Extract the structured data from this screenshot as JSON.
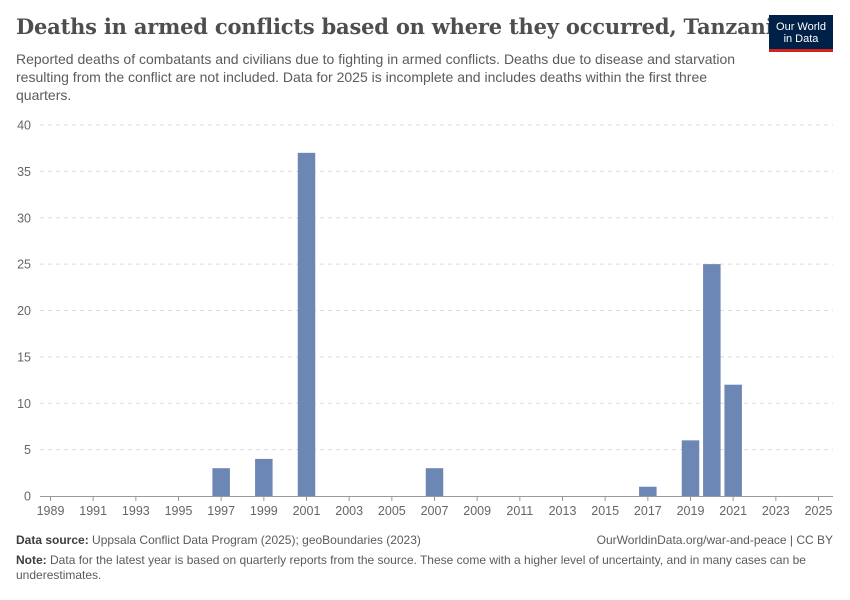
{
  "header": {
    "title": "Deaths in armed conflicts based on where they occurred, Tanzania",
    "subtitle": "Reported deaths of combatants and civilians due to fighting in armed conflicts. Deaths due to disease and starvation resulting from the conflict are not included. Data for 2025 is incomplete and includes deaths within the first three quarters."
  },
  "logo": {
    "line1": "Our World",
    "line2": "in Data"
  },
  "footer": {
    "source_label": "Data source:",
    "source_text": "Uppsala Conflict Data Program (2025); geoBoundaries (2023)",
    "url": "OurWorldinData.org/war-and-peace | CC BY",
    "note_label": "Note:",
    "note_text": "Data for the latest year is based on quarterly reports from the source. These come with a higher level of uncertainty, and in many cases can be underestimates."
  },
  "chart_data": {
    "type": "bar",
    "title": "Deaths in armed conflicts based on where they occurred, Tanzania",
    "xlabel": "",
    "ylabel": "",
    "ylim": [
      0,
      40
    ],
    "yticks": [
      0,
      5,
      10,
      15,
      20,
      25,
      30,
      35,
      40
    ],
    "xticks": [
      1989,
      1991,
      1993,
      1995,
      1997,
      1999,
      2001,
      2003,
      2005,
      2007,
      2009,
      2011,
      2013,
      2015,
      2017,
      2019,
      2021,
      2023,
      2025
    ],
    "xlim": [
      1989,
      2025
    ],
    "grid": true,
    "bar_color": "#6d87b4",
    "categories": [
      1997,
      1999,
      2001,
      2007,
      2017,
      2019,
      2020,
      2021
    ],
    "values": [
      3,
      4,
      37,
      3,
      1,
      6,
      25,
      12
    ]
  }
}
